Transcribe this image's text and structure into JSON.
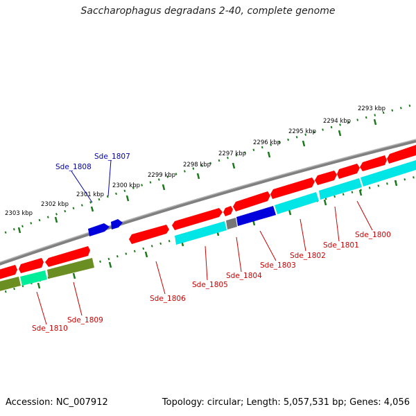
{
  "title": "Saccharophagus degradans 2-40, complete genome",
  "accession": "Accession: NC_007912",
  "summary": "Topology: circular; Length: 5,057,531 bp; Genes: 4,056",
  "colors": {
    "backbone": "#808080",
    "ruler": "#1a7a1a",
    "cds_forward": "#ff0000",
    "cds_reverse": "#00e5e5",
    "rna": "#0000dd",
    "olive": "#6b8e23",
    "spring": "#00ee99",
    "gray_gene": "#777777",
    "label_red": "#cc0000",
    "label_blue": "#0000aa"
  },
  "ticks": [
    "2293 kbp",
    "2294 kbp",
    "2295 kbp",
    "2296 kbp",
    "2297 kbp",
    "2298 kbp",
    "2299 kbp",
    "2300 kbp",
    "2301 kbp",
    "2302 kbp",
    "2303 kbp"
  ],
  "genes": {
    "Sde_1800": "Sde_1800",
    "Sde_1801": "Sde_1801",
    "Sde_1802": "Sde_1802",
    "Sde_1803": "Sde_1803",
    "Sde_1804": "Sde_1804",
    "Sde_1805": "Sde_1805",
    "Sde_1806": "Sde_1806",
    "Sde_1807": "Sde_1807",
    "Sde_1808": "Sde_1808",
    "Sde_1809": "Sde_1809",
    "Sde_1810": "Sde_1810"
  }
}
